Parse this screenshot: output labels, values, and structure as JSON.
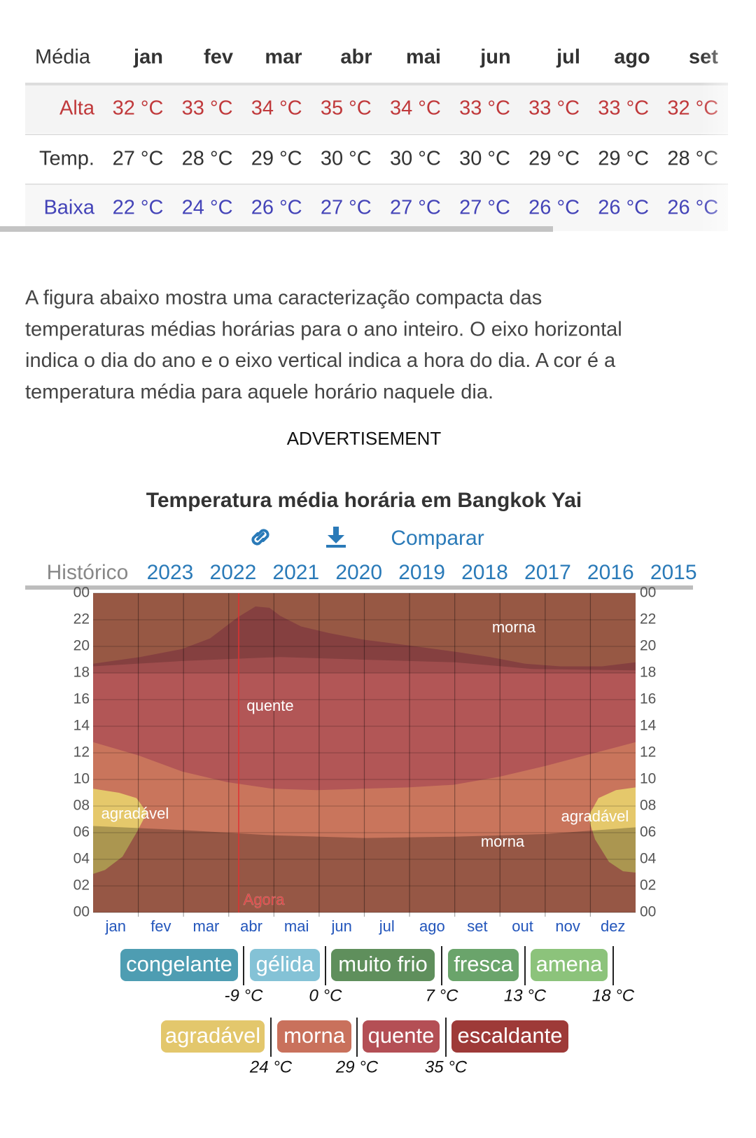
{
  "table": {
    "header": [
      "Média",
      "jan",
      "fev",
      "mar",
      "abr",
      "mai",
      "jun",
      "jul",
      "ago",
      "set"
    ],
    "rows": [
      {
        "label": "Alta",
        "color": "#c0393b",
        "values": [
          "32 °C",
          "33 °C",
          "34 °C",
          "35 °C",
          "34 °C",
          "33 °C",
          "33 °C",
          "33 °C",
          "32 °C"
        ]
      },
      {
        "label": "Temp.",
        "color": "#333333",
        "values": [
          "27 °C",
          "28 °C",
          "29 °C",
          "30 °C",
          "30 °C",
          "30 °C",
          "29 °C",
          "29 °C",
          "28 °C"
        ]
      },
      {
        "label": "Baixa",
        "color": "#4444b8",
        "values": [
          "22 °C",
          "24 °C",
          "26 °C",
          "27 °C",
          "27 °C",
          "27 °C",
          "26 °C",
          "26 °C",
          "26 °C"
        ]
      }
    ]
  },
  "description": [
    "A figura abaixo mostra uma caracterização compacta das",
    "temperaturas médias horárias para o ano inteiro. O eixo horizontal",
    "indica o dia do ano e o eixo vertical indica a hora do dia. A cor é a",
    "temperatura média para aquele horário naquele dia."
  ],
  "advertisement": "ADVERTISEMENT",
  "chart": {
    "title": "Temperatura média horária em Bangkok Yai",
    "compare": "Comparar",
    "history_label": "Histórico",
    "years": [
      "2023",
      "2022",
      "2021",
      "2020",
      "2019",
      "2018",
      "2017",
      "2016",
      "2015"
    ],
    "hour_labels": [
      "00",
      "22",
      "20",
      "18",
      "16",
      "14",
      "12",
      "10",
      "08",
      "06",
      "04",
      "02",
      "00"
    ],
    "months": [
      "jan",
      "fev",
      "mar",
      "abr",
      "mai",
      "jun",
      "jul",
      "ago",
      "set",
      "out",
      "nov",
      "dez"
    ],
    "region_labels": [
      "morna",
      "quente",
      "agradável",
      "agradável",
      "morna"
    ],
    "now_label": "Agora"
  },
  "legend": {
    "row1": [
      {
        "name": "congelante",
        "color": "#4e9db2"
      },
      {
        "name": "gélida",
        "color": "#84c2d6"
      },
      {
        "name": "muito frio",
        "color": "#5f8f5c"
      },
      {
        "name": "fresca",
        "color": "#6aa46b"
      },
      {
        "name": "amena",
        "color": "#8cc37b"
      }
    ],
    "row1_thresholds": [
      "-9 °C",
      "0 °C",
      "7 °C",
      "13 °C",
      "18 °C"
    ],
    "row2": [
      {
        "name": "agradável",
        "color": "#e3c76c"
      },
      {
        "name": "morna",
        "color": "#c9715c"
      },
      {
        "name": "quente",
        "color": "#b44f55"
      },
      {
        "name": "escaldante",
        "color": "#9e3a38"
      }
    ],
    "row2_thresholds": [
      "24 °C",
      "29 °C",
      "35 °C"
    ]
  }
}
